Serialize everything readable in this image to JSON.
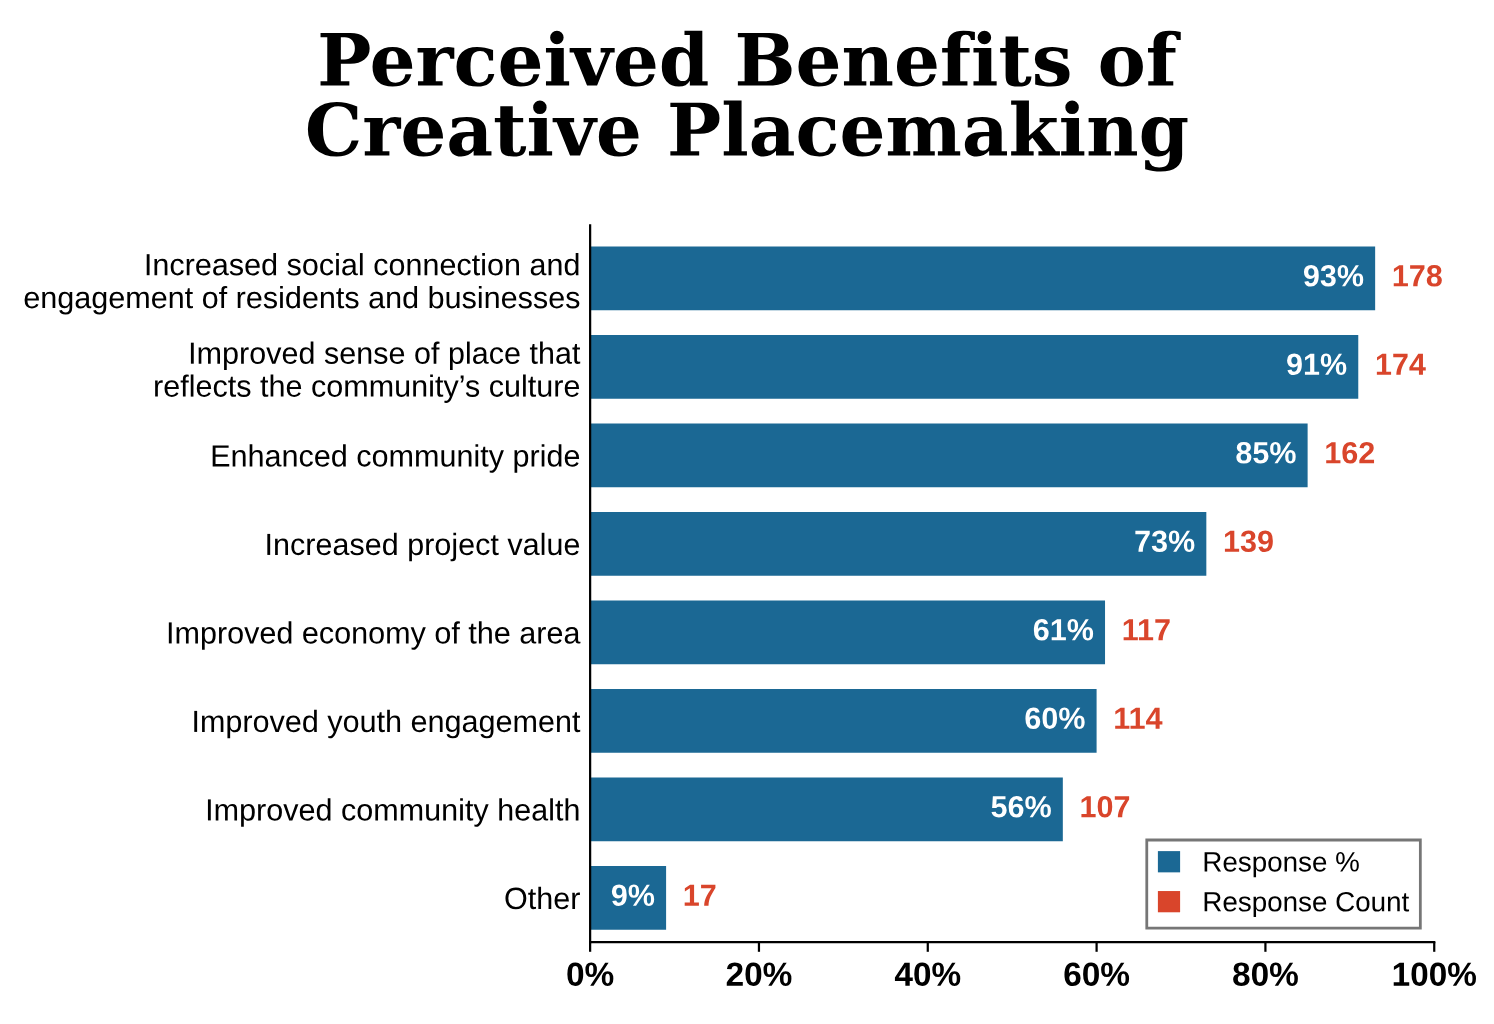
{
  "chart_data": {
    "type": "bar",
    "orientation": "horizontal",
    "title": "Perceived Benefits of\nCreative Placemaking",
    "categories": [
      "Increased social connection and\nengagement of residents and businesses",
      "Improved sense of place that\nreflects the community’s culture",
      "Enhanced community pride",
      "Increased project value",
      "Improved economy of the area",
      "Improved youth engagement",
      "Improved community health",
      "Other"
    ],
    "series": [
      {
        "name": "Response %",
        "color": "#1b6894",
        "values": [
          93,
          91,
          85,
          73,
          61,
          60,
          56,
          9
        ],
        "value_labels": [
          "93%",
          "91%",
          "85%",
          "73%",
          "61%",
          "60%",
          "56%",
          "9%"
        ]
      },
      {
        "name": "Response Count",
        "color": "#d9452b",
        "type": "other",
        "values": [
          null,
          null,
          null,
          null,
          null,
          null,
          null,
          null
        ]
      }
    ],
    "annotations": [
      {
        "text": "178",
        "x": 93,
        "y": "Increased social connection and\nengagement of residents and businesses"
      },
      {
        "text": "174",
        "x": 91,
        "y": "Improved sense of place that\nreflects the community’s culture"
      },
      {
        "text": "162",
        "x": 85,
        "y": "Enhanced community pride"
      },
      {
        "text": "139",
        "x": 73,
        "y": "Increased project value"
      },
      {
        "text": "117",
        "x": 61,
        "y": "Improved economy of the area"
      },
      {
        "text": "114",
        "x": 60,
        "y": "Improved youth engagement"
      },
      {
        "text": "107",
        "x": 56,
        "y": "Improved community health"
      },
      {
        "text": "17",
        "x": 9,
        "y": "Other"
      }
    ],
    "xlim": [
      0,
      100
    ],
    "xticks": [
      {
        "value": 0,
        "label": "0%"
      },
      {
        "value": 20,
        "label": "20%"
      },
      {
        "value": 40,
        "label": "40%"
      },
      {
        "value": 60,
        "label": "60%"
      },
      {
        "value": 80,
        "label": "80%"
      },
      {
        "value": 100,
        "label": "100%"
      }
    ],
    "grid": false,
    "legend": "bottom right"
  }
}
